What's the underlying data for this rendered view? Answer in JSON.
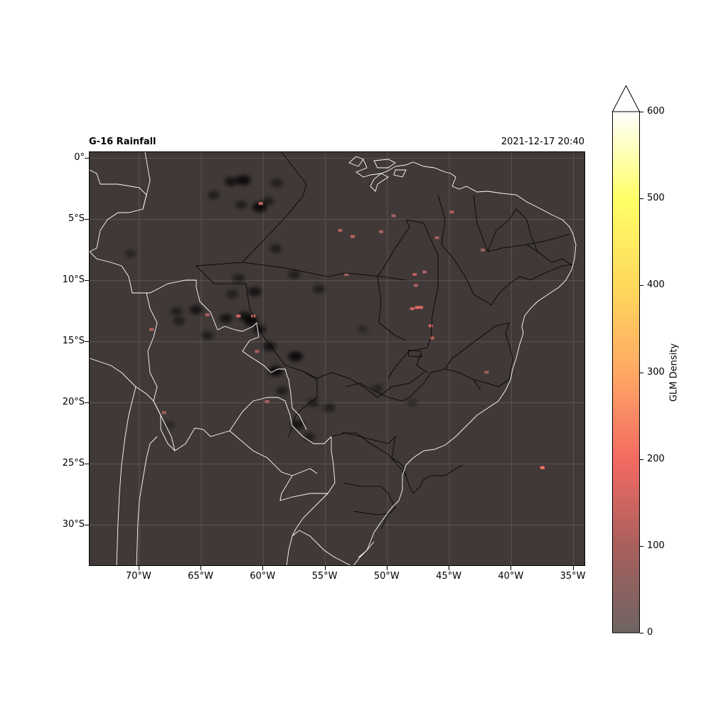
{
  "title": {
    "left": "G-16 Rainfall",
    "right": "2021-12-17 20:40"
  },
  "map": {
    "extent": {
      "lon": [
        -74,
        -34
      ],
      "lat": [
        -33.4,
        0.5
      ]
    },
    "background_color": "#403938",
    "gridlines": true,
    "lat_ticks": [
      {
        "value": 0,
        "label": "0°"
      },
      {
        "value": -5,
        "label": "5°S"
      },
      {
        "value": -10,
        "label": "10°S"
      },
      {
        "value": -15,
        "label": "15°S"
      },
      {
        "value": -20,
        "label": "20°S"
      },
      {
        "value": -25,
        "label": "25°S"
      },
      {
        "value": -30,
        "label": "30°S"
      }
    ],
    "lon_ticks": [
      {
        "value": -70,
        "label": "70°W"
      },
      {
        "value": -65,
        "label": "65°W"
      },
      {
        "value": -60,
        "label": "60°W"
      },
      {
        "value": -55,
        "label": "55°W"
      },
      {
        "value": -50,
        "label": "50°W"
      },
      {
        "value": -45,
        "label": "45°W"
      },
      {
        "value": -40,
        "label": "40°W"
      },
      {
        "value": -35,
        "label": "35°W"
      }
    ],
    "rain_cells": [
      [
        -61.6,
        -1.8,
        0.5
      ],
      [
        -62.6,
        -1.9,
        0.4
      ],
      [
        -60.3,
        -4.0,
        0.5
      ],
      [
        -58.9,
        -2.0,
        0.3
      ],
      [
        -59.6,
        -3.5,
        0.3
      ],
      [
        -61.8,
        -3.8,
        0.3
      ],
      [
        -64.0,
        -3.0,
        0.3
      ],
      [
        -61.0,
        -13.3,
        0.5
      ],
      [
        -63.0,
        -13.1,
        0.4
      ],
      [
        -61.5,
        -12.9,
        0.4
      ],
      [
        -65.4,
        -12.4,
        0.4
      ],
      [
        -60.3,
        -14.0,
        0.4
      ],
      [
        -57.4,
        -16.2,
        0.5
      ],
      [
        -59.0,
        -17.4,
        0.5
      ],
      [
        -57.2,
        -21.8,
        0.4
      ],
      [
        -58.5,
        -19.0,
        0.3
      ],
      [
        -59.5,
        -15.4,
        0.4
      ],
      [
        -54.7,
        -20.4,
        0.3
      ],
      [
        -56.0,
        -20.0,
        0.3
      ],
      [
        -62.5,
        -11.1,
        0.3
      ],
      [
        -60.7,
        -10.9,
        0.4
      ],
      [
        -57.5,
        -9.5,
        0.3
      ],
      [
        -55.5,
        -10.7,
        0.3
      ],
      [
        -66.8,
        -13.3,
        0.3
      ],
      [
        -64.5,
        -14.5,
        0.3
      ],
      [
        -59.0,
        -7.4,
        0.3
      ],
      [
        -56.3,
        -22.8,
        0.3
      ],
      [
        -62.0,
        -9.8,
        0.3
      ],
      [
        -67.0,
        -12.5,
        0.3
      ],
      [
        -70.7,
        -7.8,
        0.25
      ],
      [
        -67.5,
        -21.8,
        0.2
      ],
      [
        -50.8,
        -18.8,
        0.25
      ],
      [
        -48.0,
        -20.0,
        0.2
      ],
      [
        -52.0,
        -14.0,
        0.2
      ]
    ],
    "glm_cells": [
      [
        -52.8,
        -6.4,
        120
      ],
      [
        -53.8,
        -5.9,
        110
      ],
      [
        -50.5,
        -6.0,
        100
      ],
      [
        -49.5,
        -4.7,
        90
      ],
      [
        -44.8,
        -4.4,
        110
      ],
      [
        -46.0,
        -6.5,
        90
      ],
      [
        -42.3,
        -7.5,
        80
      ],
      [
        -47.8,
        -9.5,
        120
      ],
      [
        -47.0,
        -9.3,
        100
      ],
      [
        -47.6,
        -12.2,
        180
      ],
      [
        -47.3,
        -12.2,
        170
      ],
      [
        -48.0,
        -12.3,
        150
      ],
      [
        -47.7,
        -10.4,
        100
      ],
      [
        -46.5,
        -13.7,
        150
      ],
      [
        -46.4,
        -14.7,
        140
      ],
      [
        -37.5,
        -25.3,
        220
      ],
      [
        -53.3,
        -9.5,
        80
      ],
      [
        -60.8,
        -12.9,
        140
      ],
      [
        -62.0,
        -12.9,
        150
      ],
      [
        -60.5,
        -15.8,
        90
      ],
      [
        -59.7,
        -19.9,
        100
      ],
      [
        -69.0,
        -14.0,
        110
      ],
      [
        -68.0,
        -20.8,
        80
      ],
      [
        -60.2,
        -3.7,
        130
      ],
      [
        -64.5,
        -12.8,
        100
      ],
      [
        -42.0,
        -17.5,
        80
      ]
    ]
  },
  "colorbar": {
    "label": "GLM Density",
    "vmin": 0,
    "vmax": 600,
    "extend": "max",
    "tick_labels": [
      "0",
      "100",
      "200",
      "300",
      "400",
      "500",
      "600"
    ],
    "colors": {
      "c0": "#6e6462",
      "c100": "#a9605d",
      "c200": "#f46a62",
      "c300": "#ffa864",
      "c400": "#ffd95c",
      "c500": "#ffff66",
      "c600": "#ffffff"
    }
  }
}
